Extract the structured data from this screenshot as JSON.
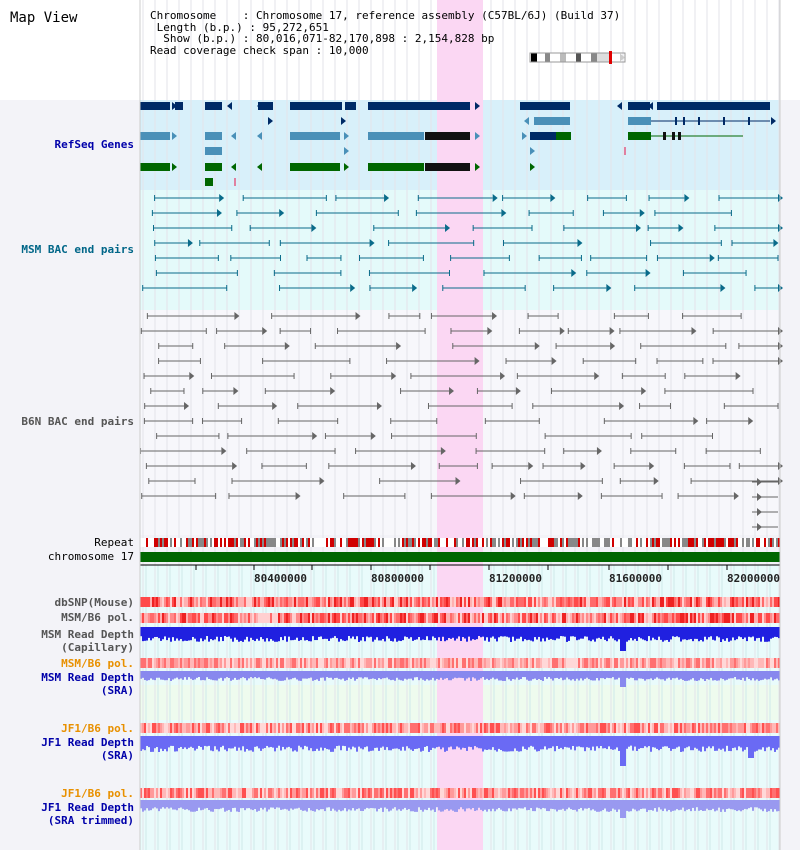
{
  "title": "Map View",
  "info": {
    "chromosome_label": "Chromosome",
    "chromosome_value": "Chromosome 17, reference assembly (C57BL/6J) (Build 37)",
    "length_label": "Length (b.p.)",
    "length_value": "95,272,651",
    "show_label": "Show (b.p.)",
    "show_value": "80,016,071-82,170,898 : 2,154,828 bp",
    "coverage_label": "Read coverage check span",
    "coverage_value": "10,000"
  },
  "tracks": {
    "refseq": "RefSeq Genes",
    "msm_bac": "MSM BAC end pairs",
    "b6n_bac": "B6N BAC end pairs",
    "repeat": "Repeat",
    "chromosome": "chromosome 17",
    "dbsnp": "dbSNP(Mouse)",
    "msm_b6_pol_1": "MSM/B6 pol.",
    "msm_depth_cap_1": "MSM Read Depth",
    "msm_depth_cap_2": "(Capillary)",
    "msm_b6_pol_2": "MSM/B6 pol.",
    "msm_depth_sra_1": "MSM Read Depth",
    "msm_depth_sra_2": "(SRA)",
    "jf1_b6_pol_1": "JF1/B6 pol.",
    "jf1_depth_sra_1": "JF1 Read Depth",
    "jf1_depth_sra_2": "(SRA)",
    "jf1_b6_pol_2": "JF1/B6 pol.",
    "jf1_depth_trim_1": "JF1 Read Depth",
    "jf1_depth_trim_2": "(SRA trimmed)"
  },
  "axis": {
    "ticks": [
      "80400000",
      "80800000",
      "81200000",
      "81600000",
      "82000000"
    ]
  },
  "colors": {
    "refseq_bg": "#d8f0fa",
    "msm_bg": "#e4fafa",
    "dark_navy": "#002a66",
    "steel_blue": "#4a90b8",
    "gene_green": "#006600",
    "highlight": "#fbd7f3",
    "chromosome_green": "#006600"
  }
}
